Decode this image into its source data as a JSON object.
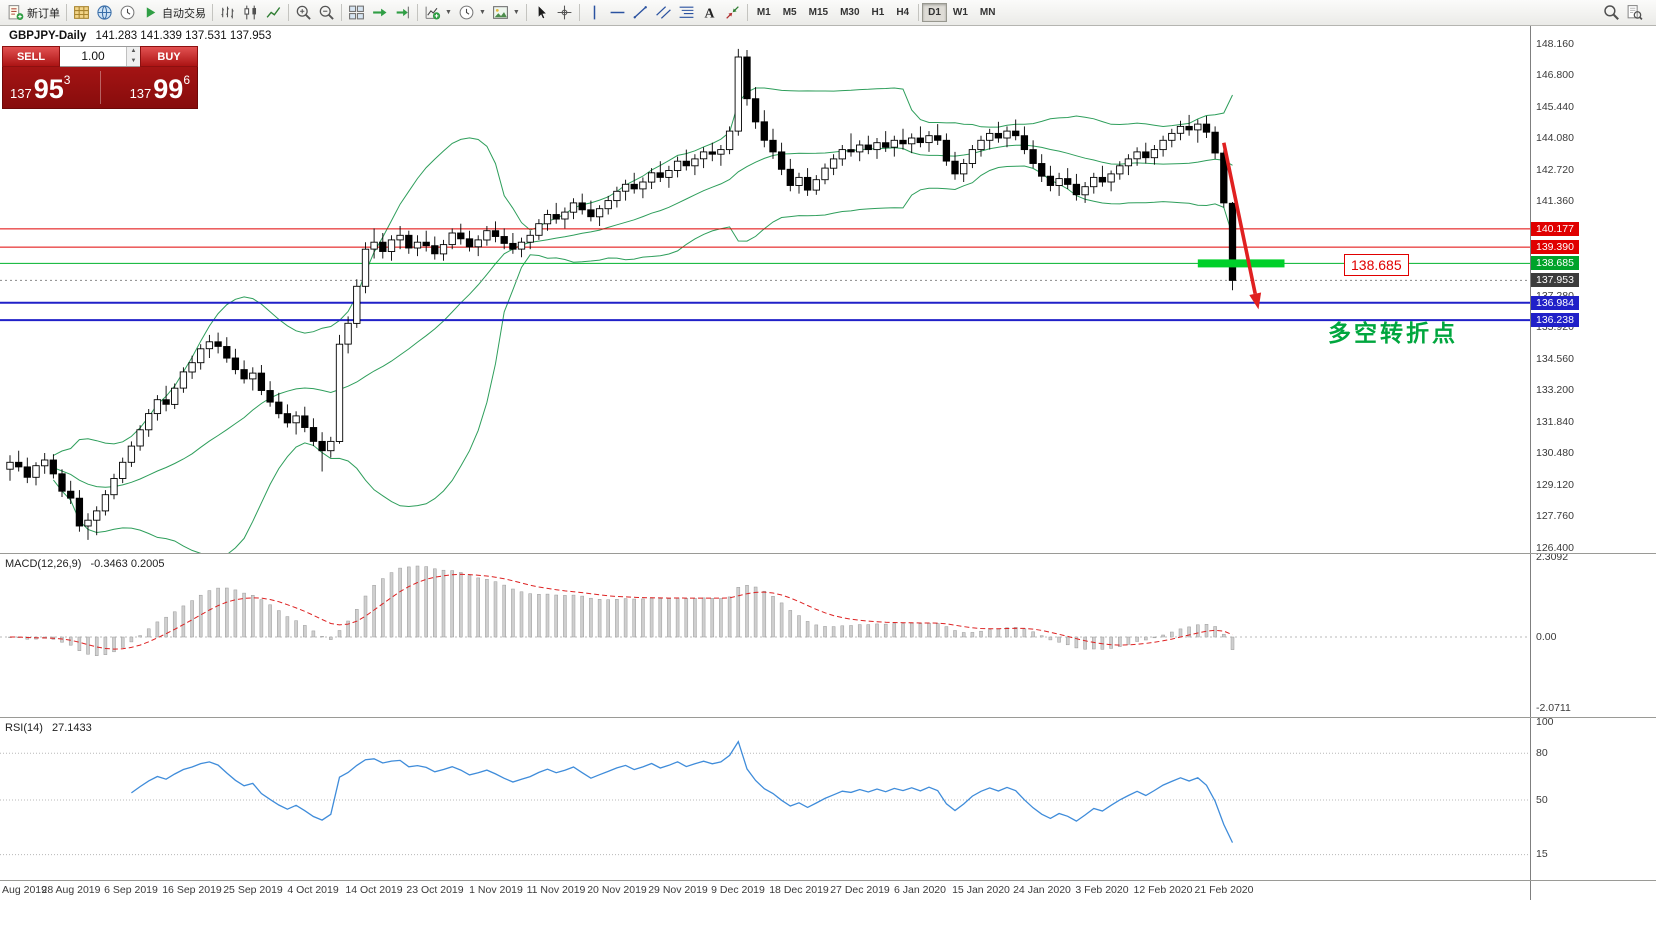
{
  "toolbar": {
    "active_timeframe": "D1",
    "items": [
      {
        "k": "btn",
        "name": "new-order",
        "icon": "doc",
        "label": "新订单"
      },
      {
        "k": "sep"
      },
      {
        "k": "icon",
        "name": "chart-window",
        "icon": "grid-gold"
      },
      {
        "k": "icon",
        "name": "profiles",
        "icon": "globe"
      },
      {
        "k": "icon",
        "name": "data-window",
        "icon": "clock"
      },
      {
        "k": "btn",
        "name": "autotrading",
        "icon": "play",
        "label": "自动交易"
      },
      {
        "k": "sep"
      },
      {
        "k": "icon",
        "name": "bar-chart-mode",
        "icon": "bars"
      },
      {
        "k": "icon",
        "name": "candlestick-mode",
        "icon": "candles"
      },
      {
        "k": "icon",
        "name": "line-chart-mode",
        "icon": "linechart"
      },
      {
        "k": "sep"
      },
      {
        "k": "icon",
        "name": "zoom-in",
        "icon": "zoomin"
      },
      {
        "k": "icon",
        "name": "zoom-out",
        "icon": "zoomout"
      },
      {
        "k": "sep"
      },
      {
        "k": "icon",
        "name": "tile-windows",
        "icon": "tiles"
      },
      {
        "k": "icon",
        "name": "auto-scroll",
        "icon": "greenarrow"
      },
      {
        "k": "icon",
        "name": "chart-shift",
        "icon": "shiftend"
      },
      {
        "k": "sep"
      },
      {
        "k": "icon",
        "name": "new-chart",
        "icon": "pluschart",
        "caret": true
      },
      {
        "k": "icon",
        "name": "periodicity",
        "icon": "clock",
        "caret": true
      },
      {
        "k": "icon",
        "name": "templates",
        "icon": "image",
        "caret": true
      },
      {
        "k": "sep"
      },
      {
        "k": "icon",
        "name": "cursor-tool",
        "icon": "cursor"
      },
      {
        "k": "icon",
        "name": "crosshair-tool",
        "icon": "cross"
      },
      {
        "k": "sep"
      },
      {
        "k": "icon",
        "name": "vertical-line-tool",
        "icon": "vline"
      },
      {
        "k": "icon",
        "name": "horizontal-line-tool",
        "icon": "hline"
      },
      {
        "k": "icon",
        "name": "trendline-tool",
        "icon": "tline"
      },
      {
        "k": "icon",
        "name": "channel-tool",
        "icon": "channel"
      },
      {
        "k": "icon",
        "name": "fibonacci-tool",
        "icon": "fibo"
      },
      {
        "k": "icon",
        "name": "text-tool",
        "icon": "textA"
      },
      {
        "k": "icon",
        "name": "arrows-tool",
        "icon": "arrows"
      },
      {
        "k": "sep"
      },
      {
        "k": "tf",
        "label": "M1"
      },
      {
        "k": "tf",
        "label": "M5"
      },
      {
        "k": "tf",
        "label": "M15"
      },
      {
        "k": "tf",
        "label": "M30"
      },
      {
        "k": "tf",
        "label": "H1"
      },
      {
        "k": "tf",
        "label": "H4"
      },
      {
        "k": "sep"
      },
      {
        "k": "tf",
        "label": "D1"
      },
      {
        "k": "tf",
        "label": "W1"
      },
      {
        "k": "tf",
        "label": "MN"
      }
    ],
    "right_items": [
      {
        "name": "zoom-search",
        "icon": "magnifier"
      },
      {
        "name": "find-symbol",
        "icon": "docfind"
      }
    ]
  },
  "chart": {
    "title": "GBPJPY-Daily",
    "ohlc": "141.283 141.339 137.531 137.953"
  },
  "one_click": {
    "sell_label": "SELL",
    "buy_label": "BUY",
    "volume": "1.00",
    "sell_prefix": "137",
    "sell_big": "95",
    "sell_sup": "3",
    "buy_prefix": "137",
    "buy_big": "99",
    "buy_sup": "6"
  },
  "price_axis": {
    "decimals": 3,
    "ticks": [
      148.16,
      146.8,
      145.44,
      144.08,
      142.72,
      141.36,
      140.0,
      138.64,
      137.28,
      135.92,
      134.56,
      133.2,
      131.84,
      130.48,
      129.12,
      127.76,
      126.4
    ]
  },
  "levels": [
    {
      "price": 140.177,
      "label": "140.177",
      "color": "#e00000",
      "tag": "#e00000",
      "width": 1,
      "style": "solid"
    },
    {
      "price": 139.39,
      "label": "139.390",
      "color": "#e00000",
      "tag": "#e00000",
      "width": 1,
      "style": "solid"
    },
    {
      "price": 138.685,
      "label": "138.685",
      "color": "#00b22d",
      "tag": "#00a32a",
      "width": 1,
      "style": "solid"
    },
    {
      "price": 137.953,
      "label": "137.953",
      "color": "#8a8a8a",
      "tag": "#3c3c3c",
      "width": 1,
      "style": "dotted"
    },
    {
      "price": 136.984,
      "label": "136.984",
      "color": "#2020c8",
      "tag": "#2020c8",
      "width": 2,
      "style": "solid"
    },
    {
      "price": 136.238,
      "label": "136.238",
      "color": "#2020c8",
      "tag": "#2020c8",
      "width": 2,
      "style": "solid"
    }
  ],
  "annotations": {
    "thick_segment": {
      "price": 138.685,
      "bar_from": 137,
      "bar_to": 147,
      "color": "#00d02a",
      "thickness": 8
    },
    "arrow": {
      "from": {
        "bar": 140,
        "price": 143.9
      },
      "to": {
        "bar": 144,
        "price": 136.7
      },
      "color": "#e02020"
    },
    "callout": {
      "text": "138.685",
      "bar": 158,
      "price": 138.64
    },
    "turning_text": {
      "text": "多空转折点",
      "bar": 152,
      "price": 135.9,
      "color": "#00a63e"
    }
  },
  "macd": {
    "label": "MACD(12,26,9)",
    "values_text": "-0.3463 0.2005",
    "params": [
      12,
      26,
      9
    ],
    "ticks": [
      {
        "v": 2.3092,
        "t": "2.3092"
      },
      {
        "v": 0,
        "t": "0.00"
      },
      {
        "v": -2.0711,
        "t": "-2.0711"
      }
    ]
  },
  "rsi": {
    "label": "RSI(14)",
    "value_text": "27.1433",
    "period": 14,
    "ticks": [
      100,
      80,
      50,
      15
    ],
    "levels": [
      80,
      50,
      15
    ]
  },
  "date_axis": {
    "bars_per_label": 7,
    "labels": [
      "Aug 2019",
      "28 Aug 2019",
      "6 Sep 2019",
      "16 Sep 2019",
      "25 Sep 2019",
      "4 Oct 2019",
      "14 Oct 2019",
      "23 Oct 2019",
      "1 Nov 2019",
      "11 Nov 2019",
      "20 Nov 2019",
      "29 Nov 2019",
      "9 Dec 2019",
      "18 Dec 2019",
      "27 Dec 2019",
      "6 Jan 2020",
      "15 Jan 2020",
      "24 Jan 2020",
      "3 Feb 2020",
      "12 Feb 2020",
      "21 Feb 2020"
    ]
  },
  "colors": {
    "band": "#2e9e5b",
    "bull": "#ffffff",
    "bear": "#000000",
    "outline": "#000000",
    "macd_hist": "#cfcfcf",
    "macd_hist_border": "#9a9a9a",
    "macd_signal": "#dd2222",
    "rsi_line": "#3f8cda",
    "grid_dotted": "#b8b8b8"
  },
  "candles": [
    [
      129.8,
      130.4,
      129.3,
      130.1
    ],
    [
      130.1,
      130.6,
      129.7,
      129.9
    ],
    [
      129.9,
      130.3,
      129.2,
      129.45
    ],
    [
      129.45,
      130.1,
      129.1,
      129.95
    ],
    [
      129.95,
      130.5,
      129.6,
      130.2
    ],
    [
      130.2,
      130.45,
      129.4,
      129.6
    ],
    [
      129.6,
      129.8,
      128.6,
      128.85
    ],
    [
      128.85,
      129.3,
      128.3,
      128.55
    ],
    [
      128.55,
      128.9,
      127.1,
      127.35
    ],
    [
      127.35,
      127.9,
      126.75,
      127.6
    ],
    [
      127.6,
      128.2,
      126.95,
      128.0
    ],
    [
      128.0,
      128.9,
      127.8,
      128.7
    ],
    [
      128.7,
      129.6,
      128.5,
      129.4
    ],
    [
      129.4,
      130.3,
      129.2,
      130.1
    ],
    [
      130.1,
      131.0,
      129.9,
      130.8
    ],
    [
      130.8,
      131.7,
      130.6,
      131.5
    ],
    [
      131.5,
      132.4,
      131.2,
      132.2
    ],
    [
      132.2,
      133.0,
      131.9,
      132.8
    ],
    [
      132.8,
      133.4,
      132.3,
      132.6
    ],
    [
      132.6,
      133.5,
      132.4,
      133.3
    ],
    [
      133.3,
      134.2,
      133.1,
      134.0
    ],
    [
      134.0,
      134.7,
      133.7,
      134.4
    ],
    [
      134.4,
      135.2,
      134.1,
      135.0
    ],
    [
      135.0,
      135.6,
      134.6,
      135.3
    ],
    [
      135.3,
      135.7,
      134.8,
      135.1
    ],
    [
      135.1,
      135.5,
      134.4,
      134.6
    ],
    [
      134.6,
      135.0,
      133.9,
      134.1
    ],
    [
      134.1,
      134.5,
      133.5,
      133.7
    ],
    [
      133.7,
      134.2,
      133.2,
      133.95
    ],
    [
      133.95,
      134.3,
      133.0,
      133.2
    ],
    [
      133.2,
      133.6,
      132.5,
      132.7
    ],
    [
      132.7,
      133.1,
      132.0,
      132.2
    ],
    [
      132.2,
      132.6,
      131.6,
      131.8
    ],
    [
      131.8,
      132.3,
      131.3,
      132.1
    ],
    [
      132.1,
      132.5,
      131.4,
      131.6
    ],
    [
      131.6,
      132.0,
      130.8,
      131.0
    ],
    [
      131.0,
      131.4,
      129.7,
      130.6
    ],
    [
      130.6,
      131.2,
      130.3,
      131.0
    ],
    [
      131.0,
      135.6,
      130.9,
      135.2
    ],
    [
      135.2,
      136.4,
      134.8,
      136.1
    ],
    [
      136.1,
      138.0,
      135.9,
      137.7
    ],
    [
      137.7,
      139.6,
      137.4,
      139.3
    ],
    [
      139.3,
      140.2,
      138.9,
      139.6
    ],
    [
      139.6,
      140.0,
      138.9,
      139.2
    ],
    [
      139.2,
      139.9,
      138.8,
      139.7
    ],
    [
      139.7,
      140.3,
      139.3,
      139.9
    ],
    [
      139.9,
      140.1,
      139.1,
      139.35
    ],
    [
      139.35,
      139.9,
      139.0,
      139.6
    ],
    [
      139.6,
      140.1,
      139.2,
      139.45
    ],
    [
      139.45,
      139.85,
      138.85,
      139.1
    ],
    [
      139.1,
      139.7,
      138.8,
      139.5
    ],
    [
      139.5,
      140.2,
      139.3,
      140.0
    ],
    [
      140.0,
      140.4,
      139.5,
      139.75
    ],
    [
      139.75,
      140.1,
      139.2,
      139.4
    ],
    [
      139.4,
      139.9,
      139.0,
      139.7
    ],
    [
      139.7,
      140.3,
      139.45,
      140.1
    ],
    [
      140.1,
      140.5,
      139.6,
      139.85
    ],
    [
      139.85,
      140.2,
      139.3,
      139.55
    ],
    [
      139.55,
      140.0,
      139.1,
      139.3
    ],
    [
      139.3,
      139.8,
      138.95,
      139.6
    ],
    [
      139.6,
      140.1,
      139.3,
      139.9
    ],
    [
      139.9,
      140.6,
      139.7,
      140.4
    ],
    [
      140.4,
      141.0,
      140.1,
      140.8
    ],
    [
      140.8,
      141.3,
      140.4,
      140.6
    ],
    [
      140.6,
      141.1,
      140.2,
      140.9
    ],
    [
      140.9,
      141.5,
      140.6,
      141.3
    ],
    [
      141.3,
      141.7,
      140.8,
      141.0
    ],
    [
      141.0,
      141.4,
      140.5,
      140.7
    ],
    [
      140.7,
      141.2,
      140.3,
      141.05
    ],
    [
      141.05,
      141.6,
      140.8,
      141.4
    ],
    [
      141.4,
      142.0,
      141.1,
      141.8
    ],
    [
      141.8,
      142.3,
      141.4,
      142.1
    ],
    [
      142.1,
      142.6,
      141.7,
      141.9
    ],
    [
      141.9,
      142.4,
      141.5,
      142.2
    ],
    [
      142.2,
      142.8,
      141.9,
      142.6
    ],
    [
      142.6,
      143.1,
      142.2,
      142.4
    ],
    [
      142.4,
      142.9,
      141.95,
      142.7
    ],
    [
      142.7,
      143.3,
      142.4,
      143.1
    ],
    [
      143.1,
      143.6,
      142.7,
      142.9
    ],
    [
      142.9,
      143.4,
      142.5,
      143.2
    ],
    [
      143.2,
      143.7,
      142.8,
      143.5
    ],
    [
      143.5,
      143.9,
      143.1,
      143.4
    ],
    [
      143.4,
      143.8,
      142.9,
      143.6
    ],
    [
      143.6,
      144.6,
      143.4,
      144.4
    ],
    [
      144.4,
      147.95,
      144.2,
      147.6
    ],
    [
      147.6,
      147.9,
      145.5,
      145.8
    ],
    [
      145.8,
      146.3,
      144.5,
      144.8
    ],
    [
      144.8,
      145.3,
      143.7,
      144.0
    ],
    [
      144.0,
      144.5,
      143.2,
      143.5
    ],
    [
      143.5,
      143.9,
      142.5,
      142.75
    ],
    [
      142.75,
      143.2,
      141.8,
      142.05
    ],
    [
      142.05,
      142.6,
      141.7,
      142.4
    ],
    [
      142.4,
      142.8,
      141.6,
      141.85
    ],
    [
      141.85,
      142.5,
      141.65,
      142.3
    ],
    [
      142.3,
      143.0,
      142.1,
      142.8
    ],
    [
      142.8,
      143.4,
      142.5,
      143.2
    ],
    [
      143.2,
      143.8,
      142.9,
      143.6
    ],
    [
      143.6,
      144.3,
      143.3,
      143.5
    ],
    [
      143.5,
      144.0,
      143.1,
      143.8
    ],
    [
      143.8,
      144.2,
      143.4,
      143.6
    ],
    [
      143.6,
      144.1,
      143.2,
      143.9
    ],
    [
      143.9,
      144.4,
      143.5,
      143.7
    ],
    [
      143.7,
      144.2,
      143.3,
      144.0
    ],
    [
      144.0,
      144.5,
      143.6,
      143.85
    ],
    [
      143.85,
      144.3,
      143.45,
      144.1
    ],
    [
      144.1,
      144.6,
      143.7,
      143.9
    ],
    [
      143.9,
      144.4,
      143.5,
      144.2
    ],
    [
      144.2,
      144.7,
      143.8,
      144.0
    ],
    [
      144.0,
      144.3,
      142.9,
      143.1
    ],
    [
      143.1,
      143.5,
      142.3,
      142.55
    ],
    [
      142.55,
      143.2,
      142.2,
      143.0
    ],
    [
      143.0,
      143.8,
      142.8,
      143.6
    ],
    [
      143.6,
      144.2,
      143.3,
      144.0
    ],
    [
      144.0,
      144.5,
      143.6,
      144.3
    ],
    [
      144.3,
      144.8,
      143.9,
      144.1
    ],
    [
      144.1,
      144.6,
      143.7,
      144.4
    ],
    [
      144.4,
      144.9,
      144.0,
      144.2
    ],
    [
      144.2,
      144.6,
      143.4,
      143.6
    ],
    [
      143.6,
      144.0,
      142.8,
      143.0
    ],
    [
      143.0,
      143.4,
      142.2,
      142.45
    ],
    [
      142.45,
      142.9,
      141.8,
      142.05
    ],
    [
      142.05,
      142.6,
      141.6,
      142.35
    ],
    [
      142.35,
      142.8,
      141.9,
      142.1
    ],
    [
      142.1,
      142.55,
      141.4,
      141.65
    ],
    [
      141.65,
      142.2,
      141.3,
      142.0
    ],
    [
      142.0,
      142.6,
      141.7,
      142.4
    ],
    [
      142.4,
      142.9,
      142.0,
      142.2
    ],
    [
      142.2,
      142.7,
      141.8,
      142.55
    ],
    [
      142.55,
      143.1,
      142.3,
      142.9
    ],
    [
      142.9,
      143.4,
      142.5,
      143.2
    ],
    [
      143.2,
      143.7,
      142.9,
      143.5
    ],
    [
      143.5,
      143.9,
      143.0,
      143.25
    ],
    [
      143.25,
      143.8,
      142.95,
      143.6
    ],
    [
      143.6,
      144.2,
      143.3,
      144.0
    ],
    [
      144.0,
      144.5,
      143.7,
      144.3
    ],
    [
      144.3,
      144.85,
      144.0,
      144.6
    ],
    [
      144.6,
      145.1,
      144.2,
      144.45
    ],
    [
      144.45,
      144.9,
      143.9,
      144.7
    ],
    [
      144.7,
      145.05,
      144.1,
      144.35
    ],
    [
      144.35,
      144.6,
      143.2,
      143.45
    ],
    [
      143.45,
      143.6,
      141.1,
      141.3
    ],
    [
      141.283,
      141.339,
      137.531,
      137.953
    ]
  ]
}
